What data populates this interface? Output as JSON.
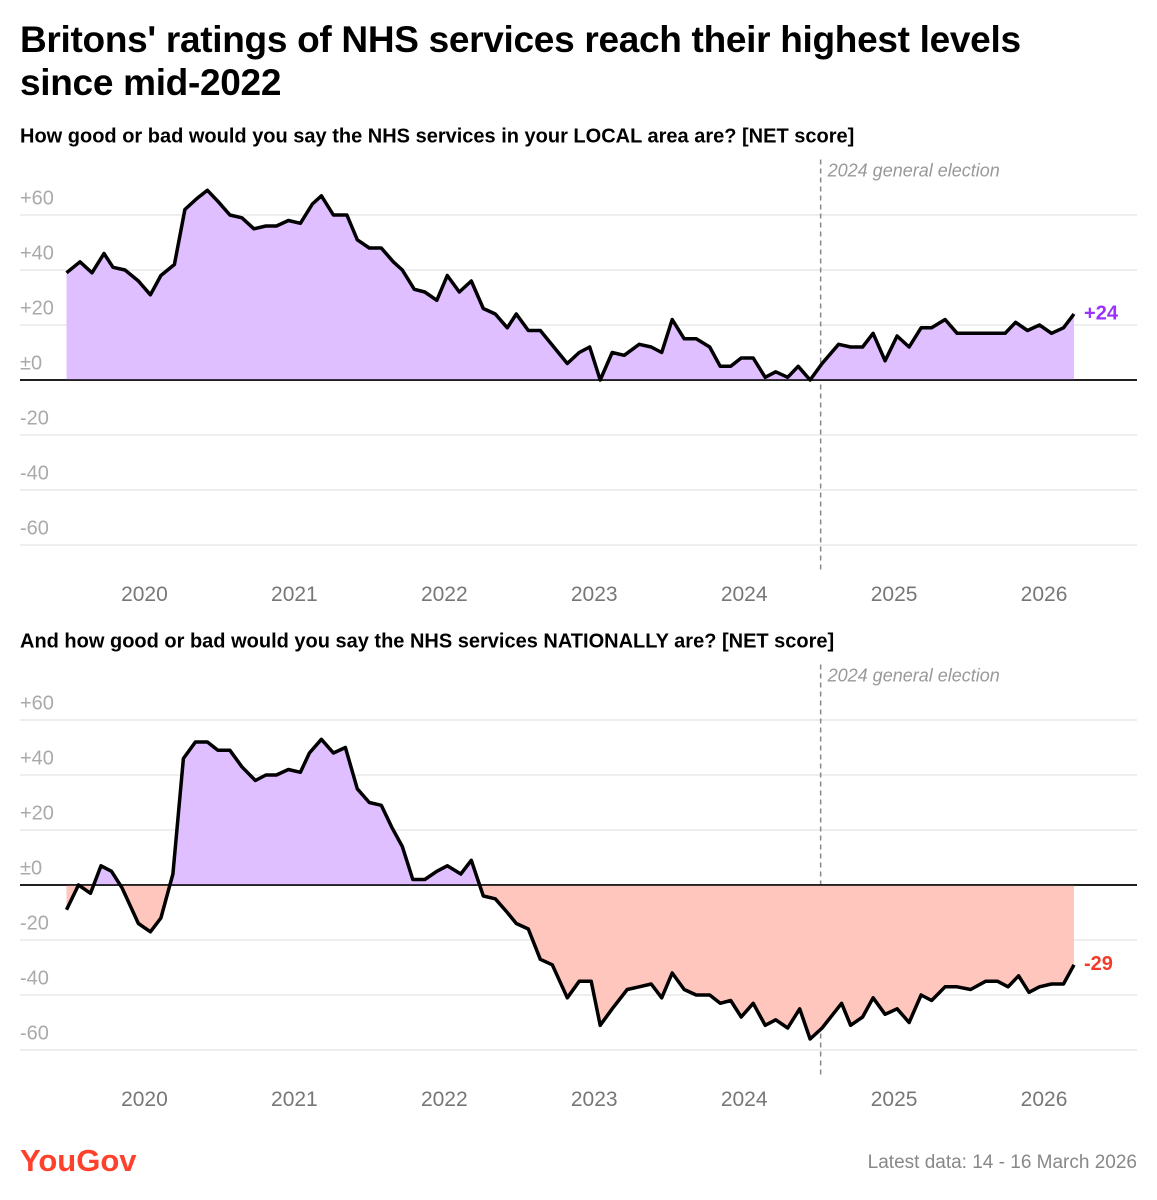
{
  "title": "Britons' ratings of NHS services reach their highest levels since mid-2022",
  "logo": "YouGov",
  "footnote": "Latest data: 14 - 16 March 2026",
  "chart_data": [
    {
      "type": "area-line",
      "title": "How good or bad would you say the NHS services in your LOCAL area are? [NET score]",
      "xlim": [
        2019.17,
        2026.62
      ],
      "xticks": [
        2020,
        2021,
        2022,
        2023,
        2024,
        2025,
        2026
      ],
      "ylim": [
        -70,
        70
      ],
      "yticks": [
        {
          "value": 60,
          "label": "+60"
        },
        {
          "value": 40,
          "label": "+40"
        },
        {
          "value": 20,
          "label": "+20"
        },
        {
          "value": 0,
          "label": "±0"
        },
        -20,
        -40,
        -60
      ],
      "grid": true,
      "annotations": [
        {
          "x": 2024.51,
          "text": "2024 general election"
        }
      ],
      "series": [
        {
          "color": "#000000",
          "fill_above": "#dfbfff",
          "fill_below": "#ffc6bd",
          "end_label": "+24",
          "end_label_color": "#9b30ff",
          "x": [
            2019.48,
            2019.57,
            2019.65,
            2019.73,
            2019.79,
            2019.87,
            2019.96,
            2020.04,
            2020.11,
            2020.2,
            2020.27,
            2020.35,
            2020.42,
            2020.49,
            2020.57,
            2020.65,
            2020.73,
            2020.81,
            2020.88,
            2020.96,
            2021.04,
            2021.12,
            2021.18,
            2021.26,
            2021.35,
            2021.42,
            2021.5,
            2021.58,
            2021.66,
            2021.72,
            2021.8,
            2021.87,
            2021.95,
            2022.02,
            2022.1,
            2022.18,
            2022.26,
            2022.34,
            2022.42,
            2022.48,
            2022.56,
            2022.64,
            2022.73,
            2022.82,
            2022.9,
            2022.97,
            2023.04,
            2023.12,
            2023.2,
            2023.3,
            2023.38,
            2023.45,
            2023.52,
            2023.6,
            2023.68,
            2023.77,
            2023.84,
            2023.91,
            2023.98,
            2024.06,
            2024.14,
            2024.21,
            2024.29,
            2024.36,
            2024.44,
            2024.52,
            2024.63,
            2024.71,
            2024.79,
            2024.86,
            2024.94,
            2025.02,
            2025.1,
            2025.18,
            2025.25,
            2025.34,
            2025.42,
            2025.51,
            2025.61,
            2025.74,
            2025.81,
            2025.89,
            2025.97,
            2026.05,
            2026.13,
            2026.2
          ],
          "values": [
            39,
            43,
            39,
            46,
            41,
            40,
            36,
            31,
            38,
            42,
            62,
            66,
            69,
            65,
            60,
            59,
            55,
            56,
            56,
            58,
            57,
            64,
            67,
            60,
            60,
            51,
            48,
            48,
            43,
            40,
            33,
            32,
            29,
            38,
            32,
            36,
            26,
            24,
            19,
            24,
            18,
            18,
            12,
            6,
            10,
            12,
            0,
            10,
            9,
            13,
            12,
            10,
            22,
            15,
            15,
            12,
            5,
            5,
            8,
            8,
            1,
            3,
            1,
            5,
            0,
            6,
            13,
            12,
            12,
            17,
            7,
            16,
            12,
            19,
            19,
            22,
            17,
            17,
            17,
            17,
            21,
            18,
            20,
            17,
            19,
            24
          ]
        }
      ]
    },
    {
      "type": "area-line",
      "title": "And how good or bad would you say the NHS services NATIONALLY are? [NET score]",
      "xlim": [
        2019.17,
        2026.62
      ],
      "xticks": [
        2020,
        2021,
        2022,
        2023,
        2024,
        2025,
        2026
      ],
      "ylim": [
        -70,
        70
      ],
      "yticks": [
        {
          "value": 60,
          "label": "+60"
        },
        {
          "value": 40,
          "label": "+40"
        },
        {
          "value": 20,
          "label": "+20"
        },
        {
          "value": 0,
          "label": "±0"
        },
        -20,
        -40,
        -60
      ],
      "grid": true,
      "annotations": [
        {
          "x": 2024.51,
          "text": "2024 general election"
        }
      ],
      "series": [
        {
          "color": "#000000",
          "fill_above": "#dfbfff",
          "fill_below": "#ffc6bd",
          "end_label": "-29",
          "end_label_color": "#f03c28",
          "x": [
            2019.48,
            2019.56,
            2019.64,
            2019.71,
            2019.78,
            2019.85,
            2019.96,
            2020.04,
            2020.11,
            2020.19,
            2020.26,
            2020.34,
            2020.42,
            2020.49,
            2020.57,
            2020.65,
            2020.74,
            2020.81,
            2020.88,
            2020.96,
            2021.04,
            2021.1,
            2021.18,
            2021.26,
            2021.34,
            2021.42,
            2021.5,
            2021.58,
            2021.65,
            2021.72,
            2021.79,
            2021.87,
            2021.95,
            2022.02,
            2022.11,
            2022.18,
            2022.26,
            2022.34,
            2022.42,
            2022.48,
            2022.56,
            2022.64,
            2022.72,
            2022.82,
            2022.9,
            2022.98,
            2023.04,
            2023.12,
            2023.22,
            2023.3,
            2023.38,
            2023.45,
            2023.52,
            2023.6,
            2023.68,
            2023.77,
            2023.84,
            2023.91,
            2023.98,
            2024.06,
            2024.14,
            2024.21,
            2024.29,
            2024.37,
            2024.44,
            2024.52,
            2024.65,
            2024.71,
            2024.79,
            2024.86,
            2024.94,
            2025.02,
            2025.1,
            2025.18,
            2025.25,
            2025.34,
            2025.42,
            2025.51,
            2025.61,
            2025.69,
            2025.76,
            2025.83,
            2025.9,
            2025.97,
            2026.05,
            2026.13,
            2026.2
          ],
          "values": [
            -9,
            0,
            -3,
            7,
            5,
            -1,
            -14,
            -17,
            -12,
            4,
            46,
            52,
            52,
            49,
            49,
            43,
            38,
            40,
            40,
            42,
            41,
            48,
            53,
            48,
            50,
            35,
            30,
            29,
            21,
            14,
            2,
            2,
            5,
            7,
            4,
            9,
            -4,
            -5,
            -10,
            -14,
            -16,
            -27,
            -29,
            -41,
            -35,
            -35,
            -51,
            -45,
            -38,
            -37,
            -36,
            -41,
            -32,
            -38,
            -40,
            -40,
            -43,
            -42,
            -48,
            -43,
            -51,
            -49,
            -52,
            -45,
            -56,
            -52,
            -43,
            -51,
            -48,
            -41,
            -47,
            -45,
            -50,
            -40,
            -42,
            -37,
            -37,
            -38,
            -35,
            -35,
            -37,
            -33,
            -39,
            -37,
            -36,
            -36,
            -29
          ]
        }
      ]
    }
  ]
}
